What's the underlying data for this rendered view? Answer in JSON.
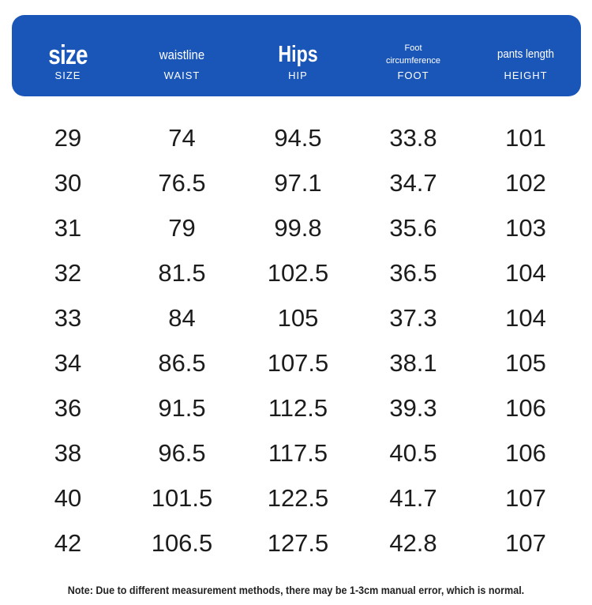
{
  "header": {
    "columns": [
      {
        "label": "size",
        "caption": "SIZE"
      },
      {
        "label": "waistline",
        "caption": "WAIST"
      },
      {
        "label": "Hips",
        "caption": "HIP"
      },
      {
        "label": "Foot circumference",
        "caption": "FOOT"
      },
      {
        "label": "pants length",
        "caption": "HEIGHT"
      }
    ]
  },
  "rows": [
    [
      "29",
      "74",
      "94.5",
      "33.8",
      "101"
    ],
    [
      "30",
      "76.5",
      "97.1",
      "34.7",
      "102"
    ],
    [
      "31",
      "79",
      "99.8",
      "35.6",
      "103"
    ],
    [
      "32",
      "81.5",
      "102.5",
      "36.5",
      "104"
    ],
    [
      "33",
      "84",
      "105",
      "37.3",
      "104"
    ],
    [
      "34",
      "86.5",
      "107.5",
      "38.1",
      "105"
    ],
    [
      "36",
      "91.5",
      "112.5",
      "39.3",
      "106"
    ],
    [
      "38",
      "96.5",
      "117.5",
      "40.5",
      "106"
    ],
    [
      "40",
      "101.5",
      "122.5",
      "41.7",
      "107"
    ],
    [
      "42",
      "106.5",
      "127.5",
      "42.8",
      "107"
    ]
  ],
  "note": "Note: Due to different measurement methods, there may be 1-3cm manual error, which is normal.",
  "colors": {
    "header_bg": "#1a56b8",
    "header_text": "#ffffff",
    "body_text": "#1c1c1c"
  }
}
